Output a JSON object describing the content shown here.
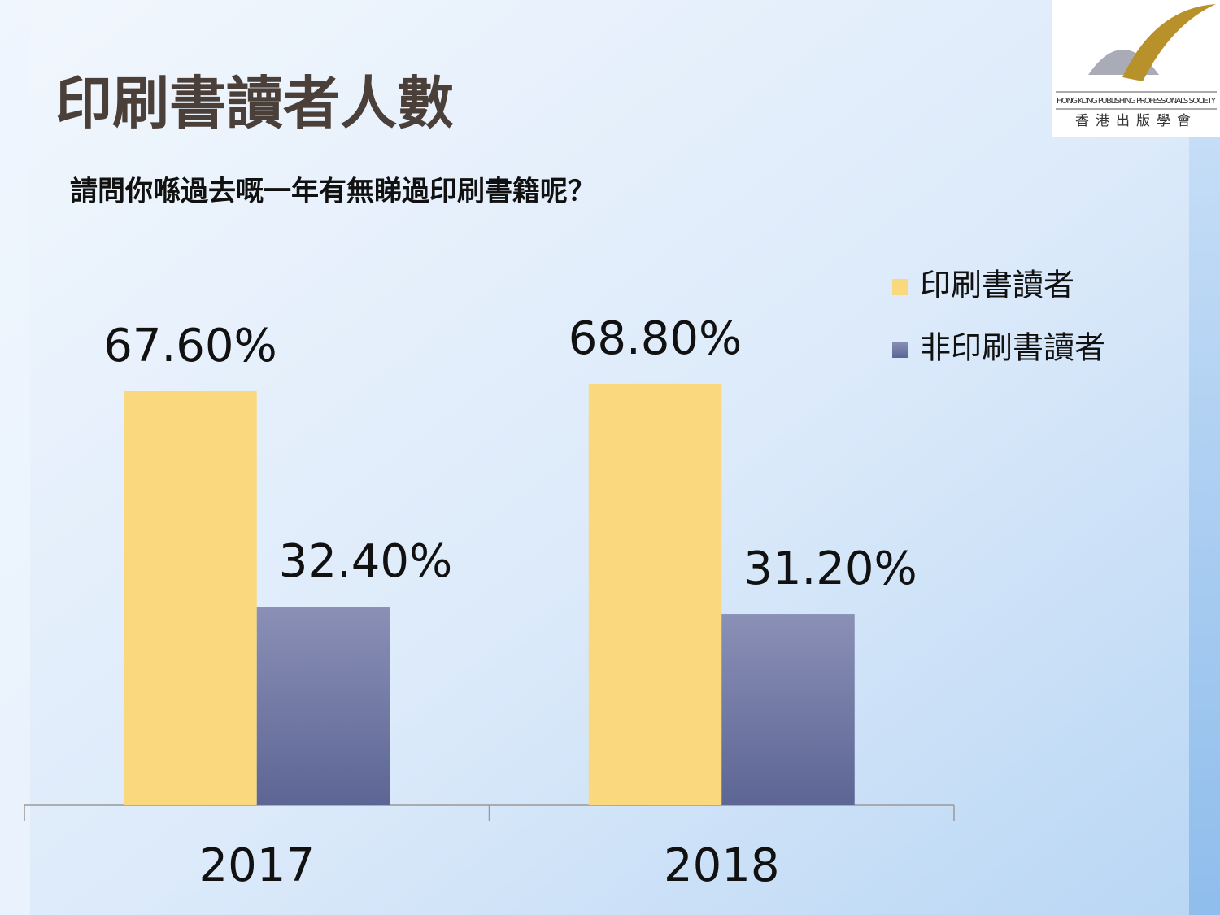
{
  "logo": {
    "name_en": "HONG KONG PUBLISHING PROFESSIONALS SOCIETY",
    "name_zh": "香港出版學會"
  },
  "chart_data": {
    "type": "bar",
    "title": "印刷書讀者人數",
    "subtitle": "請問你喺過去嘅一年有無睇過印刷書籍呢？",
    "categories": [
      "2017",
      "2018"
    ],
    "series": [
      {
        "name": "印刷書讀者",
        "color": "#fad97e",
        "values": [
          67.6,
          68.8
        ],
        "value_labels": [
          "67.60%",
          "68.80%"
        ]
      },
      {
        "name": "非印刷書讀者",
        "color": "#6b739f",
        "values": [
          32.4,
          31.2
        ],
        "value_labels": [
          "32.40%",
          "31.20%"
        ]
      }
    ]
  }
}
